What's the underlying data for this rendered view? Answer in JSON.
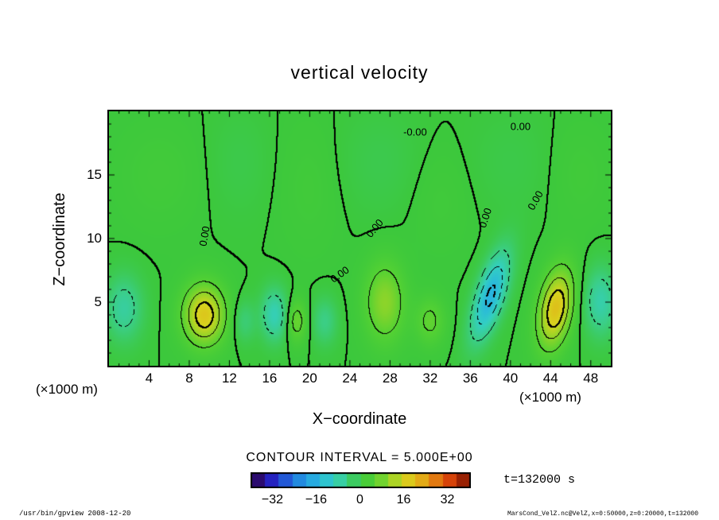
{
  "title": "vertical velocity",
  "xlabel": "X−coordinate",
  "ylabel": "Z−coordinate",
  "x_unit": "(×1000 m)",
  "y_unit": "(×1000 m)",
  "contour_note": "CONTOUR INTERVAL = 5.000E+00",
  "time_label": "t=132000 s",
  "footer_left": "/usr/bin/gpview  2008-12-20",
  "footer_right": "MarsCond_VelZ.nc@VelZ,x=0:50000,z=0:20000,t=132000",
  "chart_data": {
    "type": "heatmap",
    "title": "vertical velocity",
    "xlabel": "X-coordinate",
    "ylabel": "Z-coordinate",
    "x_unit": "(x1000 m)",
    "y_unit": "(x1000 m)",
    "x_range": [
      0,
      50
    ],
    "z_range": [
      0,
      20
    ],
    "x_ticks": [
      4,
      8,
      12,
      16,
      20,
      24,
      28,
      32,
      36,
      40,
      44,
      48
    ],
    "z_ticks": [
      5,
      10,
      15
    ],
    "contour_interval": 5.0,
    "contour_levels": [
      -15,
      -10,
      -5,
      0,
      5,
      10,
      15
    ],
    "colorbar": {
      "range": [
        -40,
        40
      ],
      "block_step": 5,
      "ticks": [
        {
          "v": -32,
          "label": "−32"
        },
        {
          "v": -16,
          "label": "−16"
        },
        {
          "v": 0,
          "label": "0"
        },
        {
          "v": 16,
          "label": "16"
        },
        {
          "v": 32,
          "label": "32"
        }
      ]
    },
    "colormap": [
      [
        -40,
        "#2e0046"
      ],
      [
        -32,
        "#2424c8"
      ],
      [
        -24,
        "#2080e0"
      ],
      [
        -16,
        "#28b4e0"
      ],
      [
        -10,
        "#33cfc2"
      ],
      [
        -5,
        "#3bce86"
      ],
      [
        0,
        "#3cc83c"
      ],
      [
        5,
        "#55d233"
      ],
      [
        10,
        "#8cd42a"
      ],
      [
        16,
        "#d8d41e"
      ],
      [
        24,
        "#e6a014"
      ],
      [
        32,
        "#dc460a"
      ],
      [
        40,
        "#7a1000"
      ]
    ],
    "field_model": {
      "description": "sum of gaussian cells, value in m/s, x and z in km",
      "gaussians": [
        {
          "amp": -7,
          "x": 1.5,
          "z": 4.5,
          "sx": 1.8,
          "sz": 2.5,
          "tilt": 0
        },
        {
          "amp": 18,
          "x": 9.5,
          "z": 4.0,
          "sx": 2.0,
          "sz": 2.3,
          "tilt": 0
        },
        {
          "amp": -4,
          "x": 13.5,
          "z": 3.5,
          "sx": 1.1,
          "sz": 1.6,
          "tilt": 0
        },
        {
          "amp": -9,
          "x": 16.5,
          "z": 4.0,
          "sx": 1.3,
          "sz": 2.0,
          "tilt": 0
        },
        {
          "amp": 7,
          "x": 18.7,
          "z": 3.5,
          "sx": 1.0,
          "sz": 1.6,
          "tilt": 0
        },
        {
          "amp": -5,
          "x": 21.5,
          "z": 3.5,
          "sx": 1.2,
          "sz": 1.8,
          "tilt": 0
        },
        {
          "amp": 10,
          "x": 27.5,
          "z": 5.0,
          "sx": 1.9,
          "sz": 3.0,
          "tilt": 0
        },
        {
          "amp": 6,
          "x": 32.0,
          "z": 3.5,
          "sx": 1.4,
          "sz": 1.8,
          "tilt": 0
        },
        {
          "amp": -16,
          "x": 38.0,
          "z": 5.5,
          "sx": 1.4,
          "sz": 3.3,
          "tilt": 0.35
        },
        {
          "amp": 19,
          "x": 44.5,
          "z": 4.5,
          "sx": 1.6,
          "sz": 3.0,
          "tilt": 0.18
        },
        {
          "amp": -8,
          "x": 49.0,
          "z": 5.0,
          "sx": 1.6,
          "sz": 2.6,
          "tilt": 0
        },
        {
          "amp": 1.2,
          "x": 5.0,
          "z": 15,
          "sx": 4.0,
          "sz": 4.0,
          "tilt": 0
        },
        {
          "amp": -1.0,
          "x": 13.0,
          "z": 16,
          "sx": 3.0,
          "sz": 4.0,
          "tilt": 0
        },
        {
          "amp": 1.0,
          "x": 20.0,
          "z": 14,
          "sx": 3.0,
          "sz": 5.0,
          "tilt": 0
        },
        {
          "amp": -1.2,
          "x": 27.0,
          "z": 16,
          "sx": 4.0,
          "sz": 4.0,
          "tilt": 0
        },
        {
          "amp": 0.9,
          "x": 33.0,
          "z": 13,
          "sx": 3.0,
          "sz": 4.0,
          "tilt": 0
        },
        {
          "amp": -0.9,
          "x": 40.0,
          "z": 16,
          "sx": 4.0,
          "sz": 4.0,
          "tilt": 0
        },
        {
          "amp": 1.0,
          "x": 47.0,
          "z": 15,
          "sx": 3.0,
          "sz": 4.0,
          "tilt": 0
        }
      ]
    },
    "contour_labels": [
      {
        "text": "-0.00",
        "x_pct": 61,
        "y_pct": 8,
        "rot": 0
      },
      {
        "text": "0.00",
        "x_pct": 82,
        "y_pct": 6,
        "rot": 0
      },
      {
        "text": "0.00",
        "x_pct": 85,
        "y_pct": 35,
        "rot": -60
      },
      {
        "text": "0.00",
        "x_pct": 75,
        "y_pct": 42,
        "rot": -72
      },
      {
        "text": "0.00",
        "x_pct": 53,
        "y_pct": 46,
        "rot": -50
      },
      {
        "text": "0.00",
        "x_pct": 46,
        "y_pct": 64,
        "rot": -35
      },
      {
        "text": "0.00",
        "x_pct": 19,
        "y_pct": 49,
        "rot": -80
      }
    ]
  }
}
